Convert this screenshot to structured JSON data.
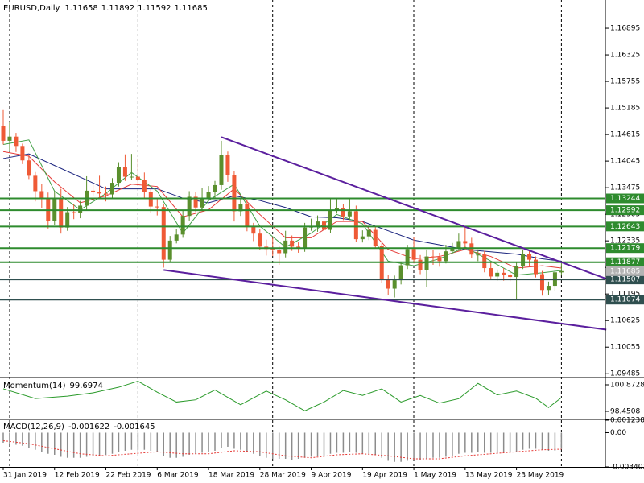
{
  "chart_data": [
    {
      "type": "candlestick",
      "title": "EURUSD,Daily",
      "categories": [
        "31 Jan 2019",
        null,
        null,
        null,
        null,
        null,
        null,
        null,
        "12 Feb 2019",
        null,
        null,
        null,
        null,
        null,
        null,
        null,
        "22 Feb 2019",
        null,
        null,
        null,
        null,
        null,
        null,
        null,
        "6 Mar 2019",
        null,
        null,
        null,
        null,
        null,
        null,
        null,
        "18 Mar 2019",
        null,
        null,
        null,
        null,
        null,
        null,
        null,
        "28 Mar 2019",
        null,
        null,
        null,
        null,
        null,
        null,
        null,
        "9 Apr 2019",
        null,
        null,
        null,
        null,
        null,
        null,
        null,
        "19 Apr 2019",
        null,
        null,
        null,
        null,
        null,
        null,
        null,
        "1 May 2019",
        null,
        null,
        null,
        null,
        null,
        null,
        null,
        "13 May 2019",
        null,
        null,
        null,
        null,
        null,
        null,
        null,
        "23 May 2019",
        null,
        null,
        null,
        null,
        null,
        null,
        null
      ],
      "open": [
        1.148,
        1.1448,
        1.1457,
        1.1437,
        1.1406,
        1.1373,
        1.134,
        1.1325,
        1.1276,
        1.1326,
        1.1262,
        1.1295,
        1.1293,
        1.1309,
        1.1341,
        1.1338,
        1.1335,
        1.1333,
        1.1358,
        1.1392,
        1.1371,
        1.1371,
        1.1364,
        1.1339,
        1.1307,
        1.1306,
        1.1193,
        1.1234,
        1.1247,
        1.1287,
        1.1328,
        1.1305,
        1.1326,
        1.1339,
        1.1353,
        1.1417,
        1.1374,
        1.1297,
        1.1313,
        1.1263,
        1.1249,
        1.1221,
        1.1216,
        1.1214,
        1.1207,
        1.1234,
        1.1221,
        1.1217,
        1.1262,
        1.1265,
        1.1275,
        1.1257,
        1.13,
        1.1304,
        1.1286,
        1.1297,
        1.1237,
        1.1243,
        1.1257,
        1.1223,
        1.1152,
        1.1131,
        1.1149,
        1.1181,
        1.1216,
        1.1193,
        1.1171,
        1.12,
        1.1199,
        1.119,
        1.1211,
        1.1218,
        1.1233,
        1.1228,
        1.1204,
        1.1204,
        1.1175,
        1.1157,
        1.1165,
        1.1161,
        1.1156,
        1.118,
        1.1205,
        1.1193,
        1.1162,
        1.1128,
        1.1137,
        1.11658
      ],
      "high": [
        1.1514,
        1.1488,
        1.1465,
        1.1442,
        1.1418,
        1.1381,
        1.1356,
        1.1337,
        1.134,
        1.1345,
        1.1306,
        1.1313,
        1.1319,
        1.1372,
        1.1354,
        1.1373,
        1.135,
        1.1368,
        1.1402,
        1.1419,
        1.142,
        1.141,
        1.138,
        1.1347,
        1.1323,
        1.1312,
        1.1244,
        1.1259,
        1.1298,
        1.134,
        1.1338,
        1.1346,
        1.1351,
        1.1362,
        1.1448,
        1.1425,
        1.1383,
        1.1325,
        1.132,
        1.1272,
        1.1258,
        1.1236,
        1.124,
        1.1223,
        1.1255,
        1.1245,
        1.1232,
        1.1272,
        1.1281,
        1.1288,
        1.1287,
        1.1324,
        1.1324,
        1.1312,
        1.1323,
        1.1309,
        1.1256,
        1.1265,
        1.1265,
        1.1228,
        1.1161,
        1.1159,
        1.1189,
        1.1225,
        1.1241,
        1.1203,
        1.1215,
        1.1214,
        1.1208,
        1.1225,
        1.1229,
        1.1249,
        1.1265,
        1.124,
        1.1215,
        1.1212,
        1.1188,
        1.1172,
        1.1175,
        1.1168,
        1.1188,
        1.1215,
        1.1213,
        1.12,
        1.1169,
        1.1146,
        1.1172,
        1.11892
      ],
      "low": [
        1.144,
        1.1425,
        1.1424,
        1.1398,
        1.1366,
        1.1318,
        1.1304,
        1.126,
        1.1267,
        1.1249,
        1.1255,
        1.128,
        1.1282,
        1.13,
        1.133,
        1.1323,
        1.1318,
        1.1326,
        1.135,
        1.1362,
        1.1365,
        1.1353,
        1.1326,
        1.1294,
        1.1288,
        1.1176,
        1.1187,
        1.1228,
        1.124,
        1.1277,
        1.1295,
        1.1297,
        1.1318,
        1.1325,
        1.1343,
        1.136,
        1.1275,
        1.1287,
        1.1254,
        1.1233,
        1.1214,
        1.1202,
        1.1201,
        1.1182,
        1.1198,
        1.1212,
        1.1208,
        1.121,
        1.1255,
        1.1253,
        1.1245,
        1.125,
        1.1292,
        1.1278,
        1.1278,
        1.1231,
        1.123,
        1.1235,
        1.1217,
        1.1144,
        1.1118,
        1.1112,
        1.114,
        1.1173,
        1.1185,
        1.1162,
        1.1134,
        1.1182,
        1.1178,
        1.1185,
        1.1205,
        1.1212,
        1.122,
        1.1197,
        1.119,
        1.1166,
        1.1152,
        1.1148,
        1.1148,
        1.1147,
        1.1107,
        1.1173,
        1.118,
        1.1155,
        1.1116,
        1.1118,
        1.1125,
        1.11592
      ],
      "close": [
        1.1448,
        1.1457,
        1.1437,
        1.1406,
        1.1373,
        1.134,
        1.1325,
        1.1276,
        1.1326,
        1.1262,
        1.1295,
        1.1293,
        1.1309,
        1.1341,
        1.1338,
        1.1335,
        1.1333,
        1.1358,
        1.1392,
        1.1371,
        1.1371,
        1.1364,
        1.1339,
        1.1307,
        1.1306,
        1.1193,
        1.1234,
        1.1247,
        1.1287,
        1.1328,
        1.1305,
        1.1326,
        1.1339,
        1.1353,
        1.1417,
        1.1374,
        1.1297,
        1.1313,
        1.1263,
        1.1249,
        1.1221,
        1.1216,
        1.1214,
        1.1207,
        1.1234,
        1.1221,
        1.1217,
        1.1262,
        1.1265,
        1.1275,
        1.1257,
        1.13,
        1.1304,
        1.1286,
        1.1297,
        1.1237,
        1.1243,
        1.1257,
        1.1223,
        1.1152,
        1.1131,
        1.1149,
        1.1181,
        1.1216,
        1.1193,
        1.1171,
        1.12,
        1.1199,
        1.119,
        1.1211,
        1.1218,
        1.1233,
        1.1228,
        1.1204,
        1.1204,
        1.1175,
        1.1157,
        1.1165,
        1.1161,
        1.1156,
        1.118,
        1.1205,
        1.1193,
        1.1162,
        1.1128,
        1.1137,
        1.1166,
        1.11685
      ],
      "up_color": "#5a8f2d",
      "down_color": "#ef5a36",
      "ylim": [
        1.0942,
        1.175
      ],
      "yticks": [
        1.16895,
        1.16325,
        1.15755,
        1.15185,
        1.14615,
        1.14045,
        1.13475,
        1.12905,
        1.12335,
        1.11765,
        1.11195,
        1.10625,
        1.10055,
        1.09485
      ],
      "moving_averages": [
        {
          "color": "#1a237e",
          "x": [
            0,
            4,
            8,
            12,
            16,
            20,
            24,
            28,
            32,
            36,
            40,
            44,
            48,
            52,
            56,
            60,
            64,
            68,
            72,
            76,
            80,
            84,
            87
          ],
          "values": [
            1.141,
            1.142,
            1.1395,
            1.137,
            1.1345,
            1.1345,
            1.1345,
            1.1325,
            1.1315,
            1.133,
            1.132,
            1.1305,
            1.1285,
            1.1283,
            1.1275,
            1.1255,
            1.1235,
            1.1225,
            1.1215,
            1.121,
            1.1205,
            1.1195,
            1.119
          ]
        },
        {
          "color": "#e53935",
          "x": [
            0,
            4,
            8,
            12,
            16,
            20,
            24,
            28,
            32,
            36,
            40,
            44,
            48,
            52,
            56,
            60,
            64,
            68,
            72,
            76,
            80,
            84,
            87
          ],
          "values": [
            1.1425,
            1.1415,
            1.136,
            1.1315,
            1.133,
            1.1355,
            1.135,
            1.1285,
            1.13,
            1.1345,
            1.129,
            1.124,
            1.124,
            1.1275,
            1.1275,
            1.1215,
            1.1195,
            1.12,
            1.1215,
            1.12,
            1.1175,
            1.118,
            1.1175
          ]
        },
        {
          "color": "#43a047",
          "x": [
            0,
            4,
            8,
            12,
            16,
            20,
            24,
            28,
            32,
            36,
            40,
            44,
            48,
            52,
            56,
            60,
            64,
            68,
            72,
            76,
            80,
            84,
            87
          ],
          "values": [
            1.144,
            1.145,
            1.134,
            1.13,
            1.1335,
            1.138,
            1.134,
            1.125,
            1.132,
            1.1355,
            1.1265,
            1.122,
            1.125,
            1.129,
            1.127,
            1.119,
            1.118,
            1.1195,
            1.122,
            1.119,
            1.116,
            1.1165,
            1.117
          ]
        }
      ],
      "hlines": [
        {
          "value": 1.13244,
          "color": "#2e8b2e"
        },
        {
          "value": 1.12992,
          "color": "#2e8b2e"
        },
        {
          "value": 1.12643,
          "color": "#2e8b2e"
        },
        {
          "value": 1.12179,
          "color": "#2e8b2e"
        },
        {
          "value": 1.11877,
          "color": "#2e8b2e"
        },
        {
          "value": 1.11507,
          "color": "#2f4f4f"
        },
        {
          "value": 1.11074,
          "color": "#2f4f4f"
        }
      ],
      "trendlines": [
        {
          "color": "#5b1f9e",
          "x": [
            34,
            94
          ],
          "values": [
            1.1456,
            1.1152
          ]
        },
        {
          "color": "#5b1f9e",
          "x": [
            25,
            94
          ],
          "values": [
            1.1171,
            1.1043
          ]
        }
      ],
      "last_price_color": "#b4b4b4"
    },
    {
      "type": "line",
      "title": "Momentum(14)",
      "x": [
        0,
        5,
        10,
        14,
        18,
        21,
        24,
        27,
        30,
        33,
        37,
        41,
        44,
        47,
        50,
        53,
        56,
        59,
        62,
        65,
        68,
        71,
        74,
        77,
        80,
        83,
        85,
        87
      ],
      "values": [
        100.51,
        99.62,
        99.84,
        100.14,
        100.65,
        101.2,
        100.2,
        99.3,
        99.5,
        100.4,
        99.05,
        100.3,
        99.5,
        98.5,
        99.3,
        100.35,
        99.9,
        100.5,
        99.3,
        99.9,
        99.2,
        99.6,
        101.0,
        99.95,
        100.3,
        99.65,
        98.8,
        99.6974
      ],
      "color": "#2a9a2a",
      "ylim": [
        97.79,
        101.46
      ],
      "yticks": [
        100.8728,
        98.4508
      ]
    },
    {
      "type": "macd",
      "title": "MACD(12,26,9)",
      "histogram": [
        -0.001,
        -0.0011,
        -0.0012,
        -0.0013,
        -0.0015,
        -0.0017,
        -0.0019,
        -0.0021,
        -0.0022,
        -0.0024,
        -0.0025,
        -0.0025,
        -0.0025,
        -0.0024,
        -0.0023,
        -0.0023,
        -0.0022,
        -0.0021,
        -0.0019,
        -0.0018,
        -0.0017,
        -0.0017,
        -0.0017,
        -0.0018,
        -0.0019,
        -0.0023,
        -0.0025,
        -0.0025,
        -0.0024,
        -0.0022,
        -0.0021,
        -0.002,
        -0.0019,
        -0.0018,
        -0.0015,
        -0.0014,
        -0.0016,
        -0.0017,
        -0.0019,
        -0.0021,
        -0.0023,
        -0.0025,
        -0.0026,
        -0.0026,
        -0.0026,
        -0.0027,
        -0.0026,
        -0.0025,
        -0.0024,
        -0.0023,
        -0.0023,
        -0.0021,
        -0.002,
        -0.002,
        -0.0019,
        -0.002,
        -0.0021,
        -0.0021,
        -0.0022,
        -0.0025,
        -0.0028,
        -0.0029,
        -0.0029,
        -0.0028,
        -0.0027,
        -0.0027,
        -0.0026,
        -0.0025,
        -0.0025,
        -0.0024,
        -0.0023,
        -0.0021,
        -0.002,
        -0.002,
        -0.0019,
        -0.002,
        -0.002,
        -0.002,
        -0.0019,
        -0.0019,
        -0.0019,
        -0.0017,
        -0.0016,
        -0.0016,
        -0.0017,
        -0.0018,
        -0.0018,
        -0.001622
      ],
      "histogram_color": "#8c8c8c",
      "signal": {
        "color": "#e53935",
        "x": [
          0,
          4,
          8,
          12,
          16,
          20,
          24,
          28,
          32,
          36,
          40,
          44,
          48,
          52,
          56,
          60,
          64,
          68,
          72,
          76,
          80,
          84,
          87
        ],
        "values": [
          -0.0008,
          -0.0011,
          -0.0016,
          -0.0021,
          -0.0023,
          -0.0021,
          -0.0019,
          -0.0021,
          -0.0021,
          -0.0018,
          -0.0019,
          -0.0023,
          -0.0025,
          -0.0022,
          -0.0021,
          -0.0023,
          -0.0026,
          -0.0026,
          -0.0023,
          -0.0021,
          -0.0019,
          -0.0017,
          -0.001645
        ]
      },
      "ylim": [
        -0.003402,
        0.001238
      ],
      "yticks": [
        0.001238,
        {
          "value": 0,
          "label": "0.00"
        },
        -0.003402
      ]
    }
  ]
}
